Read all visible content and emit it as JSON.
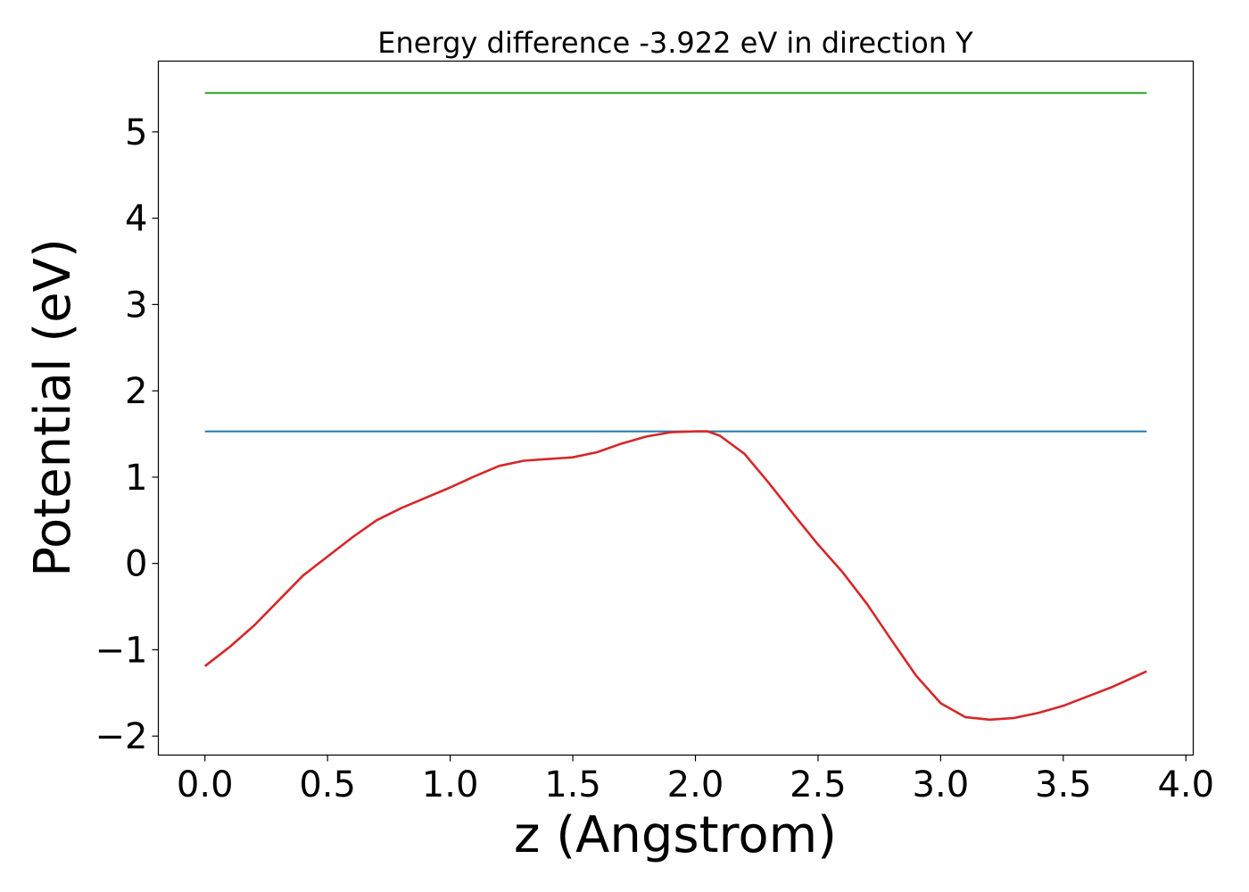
{
  "chart_data": {
    "type": "line",
    "title": "Energy difference -3.922 eV in direction Y",
    "xlabel": "z (Angstrom)",
    "ylabel": "Potential (eV)",
    "xlim": [
      -0.19,
      4.03
    ],
    "ylim": [
      -2.22,
      5.82
    ],
    "grid": false,
    "x_ticks": [
      {
        "value": 0.0,
        "label": "0.0"
      },
      {
        "value": 0.5,
        "label": "0.5"
      },
      {
        "value": 1.0,
        "label": "1.0"
      },
      {
        "value": 1.5,
        "label": "1.5"
      },
      {
        "value": 2.0,
        "label": "2.0"
      },
      {
        "value": 2.5,
        "label": "2.5"
      },
      {
        "value": 3.0,
        "label": "3.0"
      },
      {
        "value": 3.5,
        "label": "3.5"
      },
      {
        "value": 4.0,
        "label": "4.0"
      }
    ],
    "y_ticks": [
      {
        "value": -2,
        "label": "−2"
      },
      {
        "value": -1,
        "label": "−1"
      },
      {
        "value": 0,
        "label": "0"
      },
      {
        "value": 1,
        "label": "1"
      },
      {
        "value": 2,
        "label": "2"
      },
      {
        "value": 3,
        "label": "3"
      },
      {
        "value": 4,
        "label": "4"
      },
      {
        "value": 5,
        "label": "5"
      }
    ],
    "series": [
      {
        "color": "#2ca02c",
        "x": [
          0.0,
          3.84
        ],
        "y": [
          5.45,
          5.45
        ]
      },
      {
        "color": "#1f77b4",
        "x": [
          0.0,
          3.84
        ],
        "y": [
          1.53,
          1.53
        ]
      },
      {
        "color": "#d62728",
        "x": [
          0.0,
          0.1,
          0.2,
          0.3,
          0.4,
          0.5,
          0.6,
          0.7,
          0.8,
          0.9,
          1.0,
          1.1,
          1.2,
          1.3,
          1.4,
          1.5,
          1.6,
          1.7,
          1.8,
          1.9,
          2.0,
          2.05,
          2.1,
          2.2,
          2.3,
          2.4,
          2.5,
          2.6,
          2.7,
          2.8,
          2.9,
          3.0,
          3.1,
          3.2,
          3.3,
          3.4,
          3.5,
          3.6,
          3.7,
          3.84
        ],
        "y": [
          -1.19,
          -0.97,
          -0.72,
          -0.43,
          -0.14,
          0.08,
          0.3,
          0.5,
          0.64,
          0.76,
          0.88,
          1.01,
          1.13,
          1.19,
          1.21,
          1.23,
          1.29,
          1.39,
          1.47,
          1.52,
          1.53,
          1.53,
          1.48,
          1.27,
          0.93,
          0.57,
          0.22,
          -0.1,
          -0.47,
          -0.89,
          -1.3,
          -1.62,
          -1.78,
          -1.81,
          -1.79,
          -1.73,
          -1.65,
          -1.54,
          -1.43,
          -1.25
        ]
      }
    ]
  }
}
